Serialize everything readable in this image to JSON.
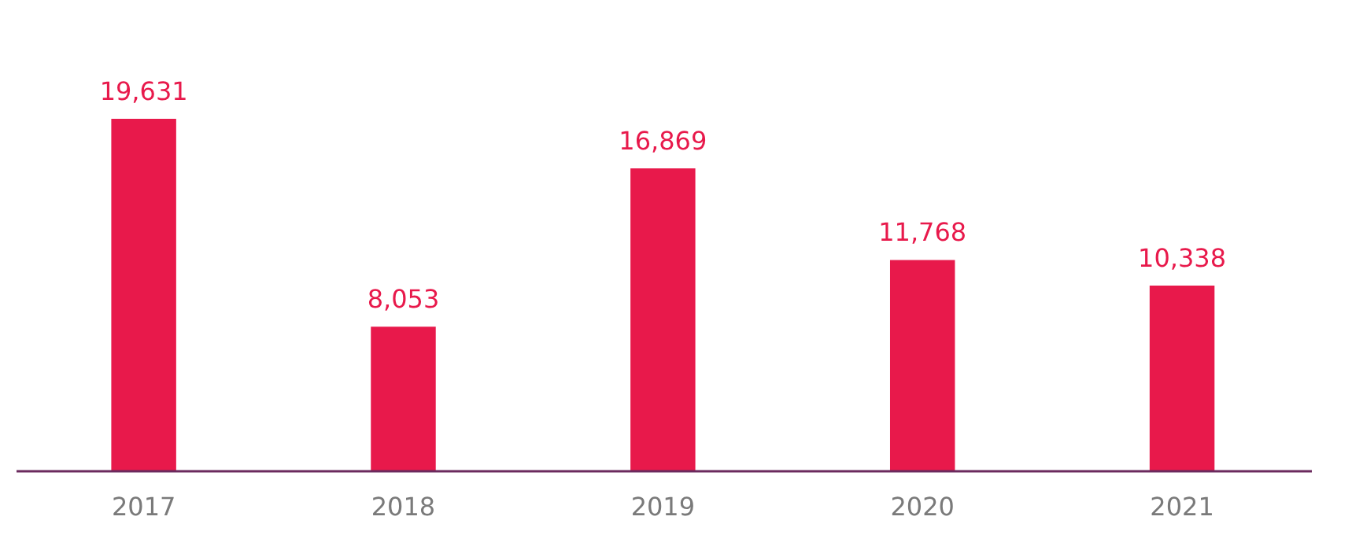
{
  "chart_data": {
    "type": "bar",
    "categories": [
      "2017",
      "2018",
      "2019",
      "2020",
      "2021"
    ],
    "values": [
      19631,
      8053,
      16869,
      11768,
      10338
    ],
    "value_labels": [
      "19,631",
      "8,053",
      "16,869",
      "11,768",
      "10,338"
    ],
    "color": "#e8194b"
  }
}
